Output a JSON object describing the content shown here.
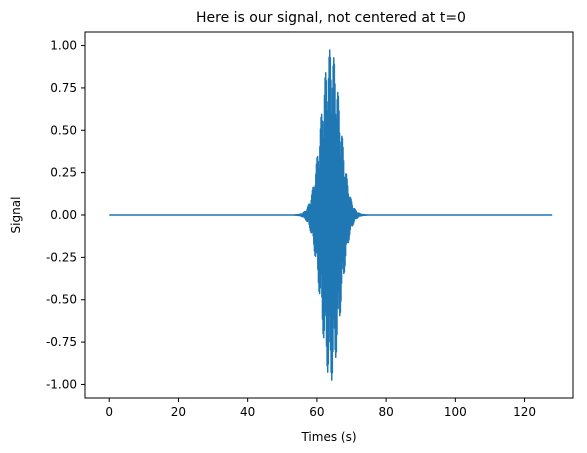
{
  "chart_data": {
    "type": "line",
    "title": "Here is our signal, not centered at t=0",
    "xlabel": "Times (s)",
    "ylabel": "Signal",
    "xlim": [
      -7,
      134
    ],
    "ylim": [
      -1.08,
      1.08
    ],
    "xticks": [
      0,
      20,
      40,
      60,
      80,
      100,
      120
    ],
    "yticks": [
      -1.0,
      -0.75,
      -0.5,
      -0.25,
      0.0,
      0.25,
      0.5,
      0.75,
      1.0
    ],
    "grid": false,
    "legend": "none",
    "color": "#1f77b4",
    "series": [
      {
        "x_start": 0,
        "x_end": 128,
        "envelope_center": 64,
        "envelope_halfwidth_at_0": 6.5,
        "peak_amplitude": 0.98,
        "carrier_cycles_per_second": 6,
        "values_shown": "modulated sine burst"
      }
    ]
  }
}
